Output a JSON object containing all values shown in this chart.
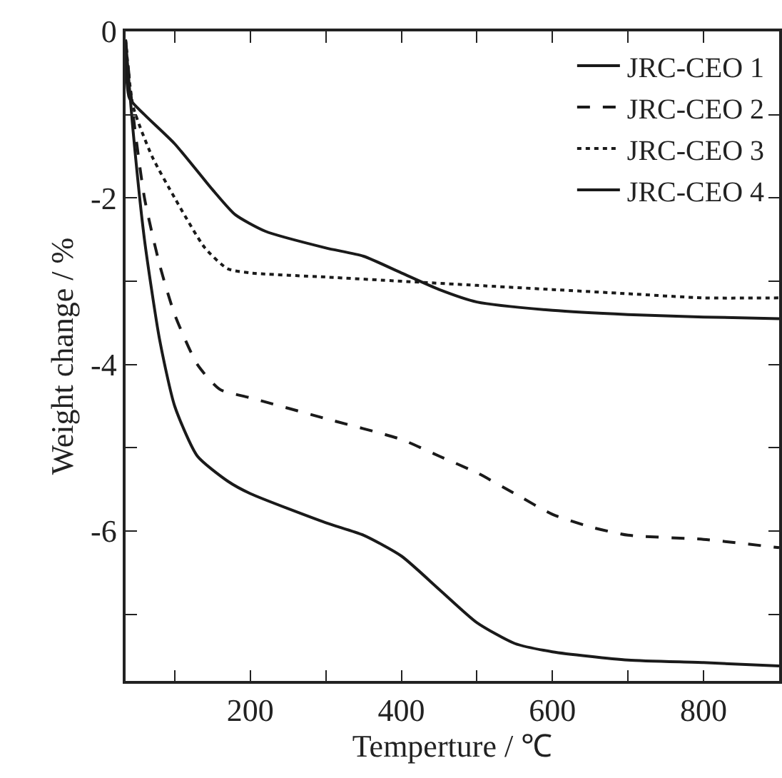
{
  "chart_data": {
    "type": "line",
    "xlabel": "Temperture / ℃",
    "ylabel": "Weight change / %",
    "xlim": [
      35,
      900
    ],
    "ylim": [
      -7.8,
      0
    ],
    "xticks": [
      {
        "value": 100,
        "label": null
      },
      200,
      {
        "value": 300,
        "label": null
      },
      400,
      {
        "value": 500,
        "label": null
      },
      600,
      {
        "value": 700,
        "label": null
      },
      800
    ],
    "yticks": [
      0,
      {
        "value": -1,
        "label": null
      },
      -2,
      {
        "value": -3,
        "label": null
      },
      -4,
      {
        "value": -5,
        "label": null
      },
      -6,
      {
        "value": -7,
        "label": null
      }
    ],
    "grid": false,
    "legend": "top right",
    "marker": "none",
    "series": [
      {
        "name": "JRC-CEO 1",
        "color": "#1a1a1a",
        "line_style": "solid",
        "x": [
          35,
          40,
          60,
          100,
          150,
          180,
          220,
          300,
          350,
          400,
          450,
          500,
          600,
          700,
          800,
          900
        ],
        "values": [
          -0.1,
          -0.8,
          -1.0,
          -1.35,
          -1.9,
          -2.2,
          -2.4,
          -2.6,
          -2.7,
          -2.9,
          -3.1,
          -3.25,
          -3.35,
          -3.4,
          -3.43,
          -3.45
        ]
      },
      {
        "name": "JRC-CEO 2",
        "color": "#1a1a1a",
        "line_style": "dashed",
        "x": [
          35,
          45,
          60,
          80,
          100,
          130,
          160,
          200,
          300,
          400,
          450,
          500,
          550,
          600,
          650,
          700,
          800,
          900
        ],
        "values": [
          -0.1,
          -1.0,
          -2.0,
          -2.8,
          -3.4,
          -4.0,
          -4.3,
          -4.4,
          -4.65,
          -4.9,
          -5.1,
          -5.3,
          -5.55,
          -5.8,
          -5.95,
          -6.05,
          -6.1,
          -6.2
        ]
      },
      {
        "name": "JRC-CEO 3",
        "color": "#1a1a1a",
        "line_style": "dotted",
        "x": [
          35,
          45,
          70,
          100,
          140,
          170,
          200,
          300,
          400,
          500,
          600,
          700,
          800,
          900
        ],
        "values": [
          -0.1,
          -0.9,
          -1.5,
          -2.0,
          -2.6,
          -2.85,
          -2.9,
          -2.95,
          -3.0,
          -3.05,
          -3.1,
          -3.15,
          -3.2,
          -3.2
        ]
      },
      {
        "name": "JRC-CEO 4",
        "color": "#1a1a1a",
        "line_style": "solid",
        "x": [
          35,
          45,
          60,
          80,
          100,
          130,
          170,
          200,
          300,
          350,
          400,
          450,
          500,
          550,
          600,
          700,
          800,
          900
        ],
        "values": [
          -0.1,
          -1.2,
          -2.5,
          -3.7,
          -4.5,
          -5.1,
          -5.4,
          -5.55,
          -5.9,
          -6.05,
          -6.3,
          -6.7,
          -7.1,
          -7.35,
          -7.45,
          -7.55,
          -7.58,
          -7.62
        ]
      }
    ]
  }
}
